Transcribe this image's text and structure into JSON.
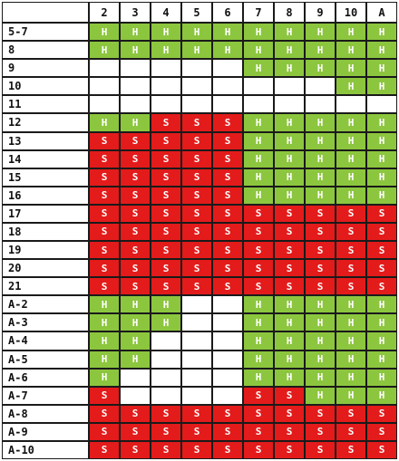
{
  "columns": [
    "2",
    "3",
    "4",
    "5",
    "6",
    "7",
    "8",
    "9",
    "10",
    "A"
  ],
  "rows": [
    {
      "label": "5-7",
      "cells": [
        "H",
        "H",
        "H",
        "H",
        "H",
        "H",
        "H",
        "H",
        "H",
        "H"
      ]
    },
    {
      "label": "8",
      "cells": [
        "H",
        "H",
        "H",
        "H",
        "H",
        "H",
        "H",
        "H",
        "H",
        "H"
      ]
    },
    {
      "label": "9",
      "cells": [
        "",
        "",
        "",
        "",
        "",
        "H",
        "H",
        "H",
        "H",
        "H"
      ]
    },
    {
      "label": "10",
      "cells": [
        "",
        "",
        "",
        "",
        "",
        "",
        "",
        "",
        "H",
        "H"
      ]
    },
    {
      "label": "11",
      "cells": [
        "",
        "",
        "",
        "",
        "",
        "",
        "",
        "",
        "",
        ""
      ]
    },
    {
      "label": "12",
      "cells": [
        "H",
        "H",
        "S",
        "S",
        "S",
        "H",
        "H",
        "H",
        "H",
        "H"
      ]
    },
    {
      "label": "13",
      "cells": [
        "S",
        "S",
        "S",
        "S",
        "S",
        "H",
        "H",
        "H",
        "H",
        "H"
      ]
    },
    {
      "label": "14",
      "cells": [
        "S",
        "S",
        "S",
        "S",
        "S",
        "H",
        "H",
        "H",
        "H",
        "H"
      ]
    },
    {
      "label": "15",
      "cells": [
        "S",
        "S",
        "S",
        "S",
        "S",
        "H",
        "H",
        "H",
        "H",
        "H"
      ]
    },
    {
      "label": "16",
      "cells": [
        "S",
        "S",
        "S",
        "S",
        "S",
        "H",
        "H",
        "H",
        "H",
        "H"
      ]
    },
    {
      "label": "17",
      "cells": [
        "S",
        "S",
        "S",
        "S",
        "S",
        "S",
        "S",
        "S",
        "S",
        "S"
      ]
    },
    {
      "label": "18",
      "cells": [
        "S",
        "S",
        "S",
        "S",
        "S",
        "S",
        "S",
        "S",
        "S",
        "S"
      ]
    },
    {
      "label": "19",
      "cells": [
        "S",
        "S",
        "S",
        "S",
        "S",
        "S",
        "S",
        "S",
        "S",
        "S"
      ]
    },
    {
      "label": "20",
      "cells": [
        "S",
        "S",
        "S",
        "S",
        "S",
        "S",
        "S",
        "S",
        "S",
        "S"
      ]
    },
    {
      "label": "21",
      "cells": [
        "S",
        "S",
        "S",
        "S",
        "S",
        "S",
        "S",
        "S",
        "S",
        "S"
      ]
    },
    {
      "label": "A-2",
      "cells": [
        "H",
        "H",
        "H",
        "",
        "",
        "H",
        "H",
        "H",
        "H",
        "H"
      ]
    },
    {
      "label": "A-3",
      "cells": [
        "H",
        "H",
        "H",
        "",
        "",
        "H",
        "H",
        "H",
        "H",
        "H"
      ]
    },
    {
      "label": "A-4",
      "cells": [
        "H",
        "H",
        "",
        "",
        "",
        "H",
        "H",
        "H",
        "H",
        "H"
      ]
    },
    {
      "label": "A-5",
      "cells": [
        "H",
        "H",
        "",
        "",
        "",
        "H",
        "H",
        "H",
        "H",
        "H"
      ]
    },
    {
      "label": "A-6",
      "cells": [
        "H",
        "",
        "",
        "",
        "",
        "H",
        "H",
        "H",
        "H",
        "H"
      ]
    },
    {
      "label": "A-7",
      "cells": [
        "S",
        "",
        "",
        "",
        "",
        "S",
        "S",
        "H",
        "H",
        "H"
      ]
    },
    {
      "label": "A-8",
      "cells": [
        "S",
        "S",
        "S",
        "S",
        "S",
        "S",
        "S",
        "S",
        "S",
        "S"
      ]
    },
    {
      "label": "A-9",
      "cells": [
        "S",
        "S",
        "S",
        "S",
        "S",
        "S",
        "S",
        "S",
        "S",
        "S"
      ]
    },
    {
      "label": "A-10",
      "cells": [
        "S",
        "S",
        "S",
        "S",
        "S",
        "S",
        "S",
        "S",
        "S",
        "S"
      ]
    }
  ],
  "colors": {
    "hit": "#8cc63e",
    "stand": "#e31b1b",
    "grid": "#1a1a1a",
    "blank": "#ffffff"
  }
}
